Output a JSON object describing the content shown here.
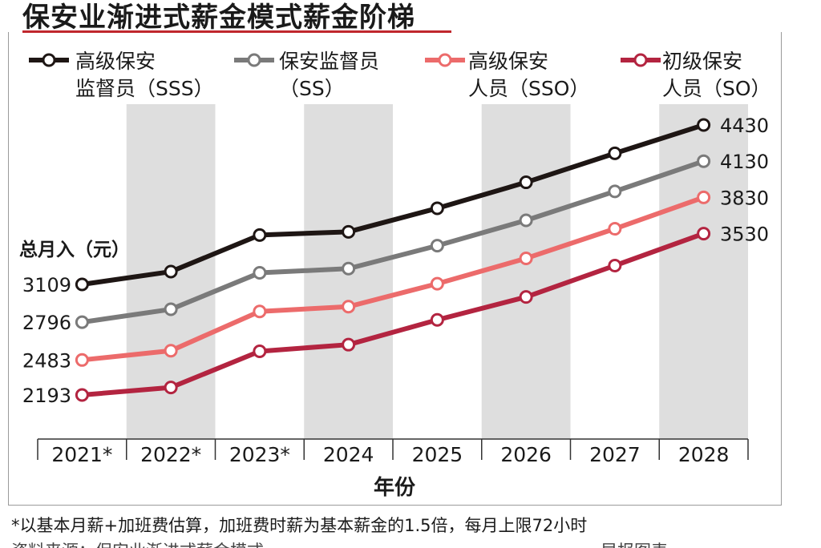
{
  "title": "保安业渐进式薪金模式薪金阶梯",
  "colors": {
    "title_rule": "#c0272d",
    "band": "#dedede"
  },
  "legend": [
    {
      "line1": "高级保安",
      "line2": "监督员（SSS）",
      "color": "#1e1614"
    },
    {
      "line1": "保安监督员",
      "line2": "（SS）",
      "color": "#7a7a7a"
    },
    {
      "line1": "高级保安",
      "line2": "人员（SSO）",
      "color": "#ec6b6b"
    },
    {
      "line1": "初级保安",
      "line2": "人员（SO）",
      "color": "#b32440"
    }
  ],
  "footnote": "*以基本月薪+加班费估算，加班费时薪为基本薪金的1.5倍，每月上限72小时",
  "footnote_cut": "资料来源：保安业渐进式薪金模式　　　　　　　　　　　　　　　　　　　　早报图表",
  "chart_data": {
    "type": "line",
    "title": "保安业渐进式薪金模式薪金阶梯",
    "xlabel": "年份",
    "ylabel": "总月入（元）",
    "categories": [
      "2021*",
      "2022*",
      "2023*",
      "2024",
      "2025",
      "2026",
      "2027",
      "2028"
    ],
    "ylim": [
      2050,
      4500
    ],
    "shaded_categories": [
      "2022*",
      "2024",
      "2026",
      "2028"
    ],
    "series": [
      {
        "name": "高级保安监督员（SSS）",
        "color": "#1e1614",
        "values": [
          3109,
          3215,
          3518,
          3545,
          3740,
          3955,
          4195,
          4430
        ],
        "start_label": "3109",
        "end_label": "4430"
      },
      {
        "name": "保安监督员（SS）",
        "color": "#7a7a7a",
        "values": [
          2796,
          2903,
          3205,
          3240,
          3430,
          3640,
          3880,
          4130
        ],
        "start_label": "2796",
        "end_label": "4130"
      },
      {
        "name": "高级保安人员（SSO）",
        "color": "#ec6b6b",
        "values": [
          2483,
          2560,
          2885,
          2925,
          3115,
          3325,
          3570,
          3830
        ],
        "start_label": "2483",
        "end_label": "3830"
      },
      {
        "name": "初级保安人员（SO）",
        "color": "#b32440",
        "values": [
          2193,
          2255,
          2555,
          2610,
          2815,
          3005,
          3265,
          3530
        ],
        "start_label": "2193",
        "end_label": "3530"
      }
    ]
  }
}
